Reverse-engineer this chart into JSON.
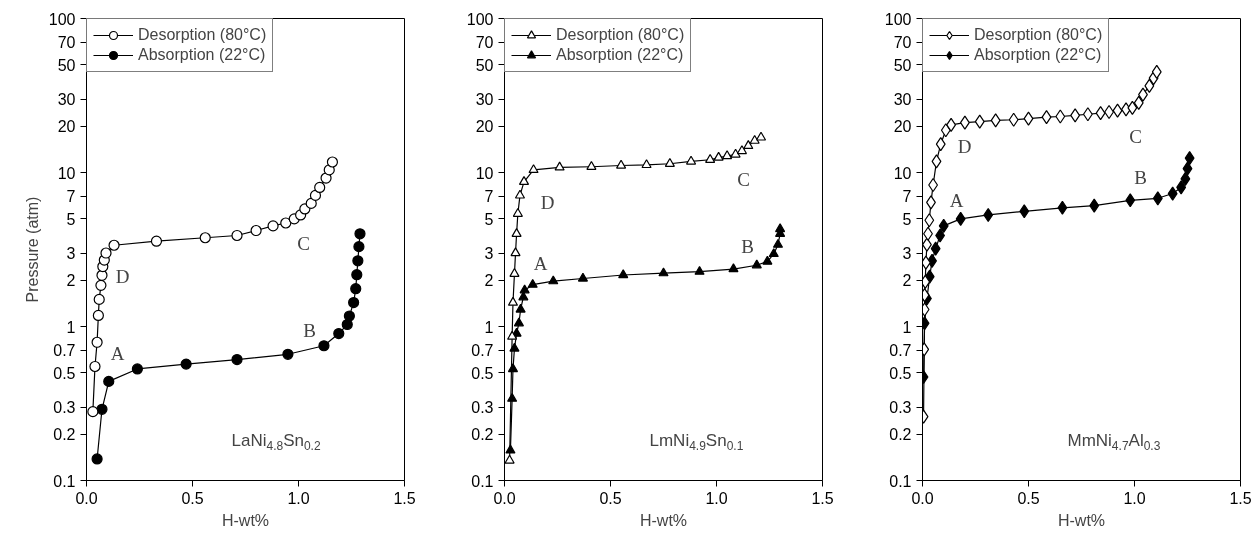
{
  "chart_data": [
    {
      "type": "line",
      "xlabel": "H-wt%",
      "ylabel": "Pressure (atm)",
      "log": "y",
      "marker": "circle",
      "legend": "top left",
      "grid": false,
      "xlim": [
        0,
        1.5
      ],
      "xticks": [
        {
          "value": 0,
          "label": "0.0"
        },
        {
          "value": 0.5,
          "label": "0.5"
        },
        {
          "value": 1,
          "label": "1.0"
        },
        {
          "value": 1.5,
          "label": "1.5"
        }
      ],
      "ylim": [
        0.1,
        100
      ],
      "yticks": [
        0.1,
        0.2,
        0.3,
        0.5,
        0.7,
        1,
        2,
        3,
        5,
        7,
        10,
        20,
        30,
        50,
        70,
        100
      ],
      "series": [
        {
          "name": "Desorption (80°C)",
          "color": "#000000",
          "x": [
            0.03,
            0.04,
            0.05,
            0.056,
            0.06,
            0.068,
            0.073,
            0.077,
            0.084,
            0.092,
            0.13,
            0.33,
            0.56,
            0.71,
            0.8,
            0.88,
            0.94,
            0.98,
            1.01,
            1.03,
            1.06,
            1.08,
            1.1,
            1.13,
            1.145,
            1.16
          ],
          "values": [
            0.28,
            0.55,
            0.79,
            1.18,
            1.5,
            1.85,
            2.15,
            2.45,
            2.7,
            3.0,
            3.37,
            3.58,
            3.77,
            3.9,
            4.2,
            4.5,
            4.7,
            5.0,
            5.3,
            5.8,
            6.3,
            7.1,
            8.0,
            9.2,
            10.4,
            11.7
          ]
        },
        {
          "name": "Absorption (22°C)",
          "color": "#000000",
          "x": [
            0.05,
            0.073,
            0.105,
            0.24,
            0.47,
            0.71,
            0.95,
            1.12,
            1.19,
            1.23,
            1.24,
            1.26,
            1.27,
            1.275,
            1.28,
            1.285,
            1.29
          ],
          "values": [
            0.138,
            0.29,
            0.44,
            0.53,
            0.57,
            0.61,
            0.66,
            0.75,
            0.9,
            1.03,
            1.17,
            1.43,
            1.76,
            2.17,
            2.67,
            3.3,
            4.0
          ]
        }
      ],
      "annotations": [
        "A",
        "B",
        "C",
        "D",
        "LaNi$_{4.8}$Sn$_{0.2}$"
      ]
    },
    {
      "type": "line",
      "xlabel": "H-wt%",
      "log": "y",
      "marker": "triangle",
      "legend": "top left",
      "grid": false,
      "xlim": [
        0,
        1.5
      ],
      "xticks": [
        {
          "value": 0,
          "label": "0.0"
        },
        {
          "value": 0.5,
          "label": "0.5"
        },
        {
          "value": 1,
          "label": "1.0"
        },
        {
          "value": 1.5,
          "label": "1.5"
        }
      ],
      "ylim": [
        0.1,
        100
      ],
      "yticks": [
        0.1,
        0.2,
        0.3,
        0.5,
        0.7,
        1,
        2,
        3,
        5,
        7,
        10,
        20,
        30,
        50,
        70,
        100
      ],
      "series": [
        {
          "name": "Desorption (80°C)",
          "color": "#000000",
          "x": [
            0.024,
            0.036,
            0.04,
            0.047,
            0.052,
            0.057,
            0.063,
            0.073,
            0.092,
            0.137,
            0.26,
            0.41,
            0.55,
            0.67,
            0.78,
            0.88,
            0.97,
            1.01,
            1.05,
            1.09,
            1.12,
            1.15,
            1.18,
            1.21
          ],
          "values": [
            0.135,
            0.86,
            1.43,
            2.2,
            3.0,
            4.0,
            5.4,
            7.1,
            8.7,
            10.4,
            10.8,
            10.9,
            11.1,
            11.2,
            11.4,
            11.8,
            12.1,
            12.5,
            12.8,
            13.1,
            13.8,
            14.9,
            16.1,
            16.9
          ]
        },
        {
          "name": "Absorption (22°C)",
          "color": "#000000",
          "x": [
            0.028,
            0.036,
            0.04,
            0.047,
            0.057,
            0.068,
            0.076,
            0.089,
            0.095,
            0.133,
            0.23,
            0.37,
            0.56,
            0.75,
            0.92,
            1.08,
            1.19,
            1.24,
            1.27,
            1.29,
            1.3,
            1.3
          ],
          "values": [
            0.157,
            0.34,
            0.53,
            0.72,
            0.9,
            1.05,
            1.29,
            1.55,
            1.72,
            1.87,
            1.97,
            2.05,
            2.16,
            2.22,
            2.27,
            2.36,
            2.5,
            2.64,
            2.96,
            3.4,
            4.0,
            4.3
          ]
        }
      ],
      "annotations": [
        "A",
        "B",
        "C",
        "D",
        "LmNi$_{4.9}$Sn$_{0.1}$"
      ]
    },
    {
      "type": "line",
      "xlabel": "H-wt%",
      "log": "y",
      "marker": "diamond",
      "legend": "top left",
      "grid": false,
      "xlim": [
        0,
        1.5
      ],
      "xticks": [
        {
          "value": 0,
          "label": "0.0"
        },
        {
          "value": 0.5,
          "label": "0.5"
        },
        {
          "value": 1,
          "label": "1.0"
        },
        {
          "value": 1.5,
          "label": "1.5"
        }
      ],
      "ylim": [
        0.1,
        100
      ],
      "yticks": [
        0.1,
        0.2,
        0.3,
        0.5,
        0.7,
        1,
        2,
        3,
        5,
        7,
        10,
        20,
        30,
        50,
        70,
        100
      ],
      "series": [
        {
          "name": "Desorption (80°C)",
          "color": "#000000",
          "x": [
            0.005,
            0.008,
            0.01,
            0.01,
            0.013,
            0.016,
            0.021,
            0.026,
            0.032,
            0.04,
            0.05,
            0.066,
            0.086,
            0.11,
            0.135,
            0.2,
            0.27,
            0.345,
            0.43,
            0.5,
            0.585,
            0.65,
            0.72,
            0.78,
            0.84,
            0.88,
            0.92,
            0.96,
            0.99,
            1.02,
            1.04,
            1.07,
            1.09,
            1.105
          ],
          "values": [
            0.26,
            0.71,
            1.29,
            1.6,
            1.95,
            2.6,
            3.4,
            4.0,
            4.9,
            6.4,
            8.3,
            11.8,
            15.3,
            18.8,
            20.4,
            21.1,
            21.4,
            21.8,
            22.0,
            22.4,
            22.9,
            23.1,
            23.5,
            23.9,
            24.3,
            24.7,
            25.2,
            25.7,
            26.3,
            28.3,
            32,
            36.5,
            41,
            45
          ]
        },
        {
          "name": "Absorption (22°C)",
          "color": "#000000",
          "x": [
            0.005,
            0.01,
            0.021,
            0.034,
            0.045,
            0.062,
            0.083,
            0.1,
            0.18,
            0.31,
            0.48,
            0.66,
            0.81,
            0.98,
            1.11,
            1.18,
            1.22,
            1.24,
            1.25,
            1.26
          ],
          "values": [
            0.47,
            1.05,
            1.52,
            2.11,
            2.67,
            3.2,
            3.9,
            4.5,
            5.0,
            5.3,
            5.6,
            5.9,
            6.1,
            6.6,
            6.8,
            7.3,
            8.0,
            9.1,
            10.6,
            12.4
          ]
        }
      ],
      "annotations": [
        "A",
        "B",
        "C",
        "D",
        "MmNi$_{4.7}$Al$_{0.3}$"
      ]
    }
  ]
}
